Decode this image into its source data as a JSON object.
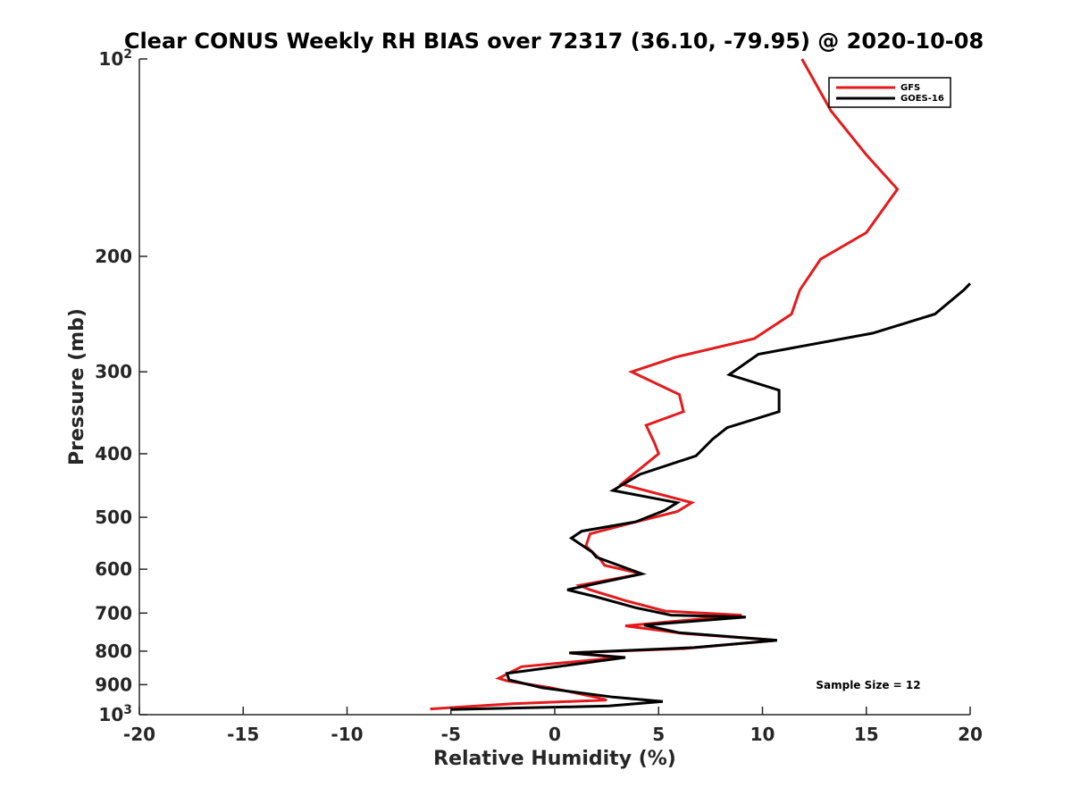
{
  "chart_data": {
    "type": "line",
    "title": "Clear CONUS Weekly RH BIAS over 72317 (36.10, -79.95) @ 2020-10-08",
    "xlabel": "Relative Humidity (%)",
    "ylabel": "Pressure (mb)",
    "xlim": [
      -20,
      20
    ],
    "ylim": [
      1000,
      100
    ],
    "yscale": "log",
    "xticks": [
      -20,
      -15,
      -10,
      -5,
      0,
      5,
      10,
      15,
      20
    ],
    "yticks": [
      {
        "value": 100,
        "label": "10",
        "sup": "2"
      },
      {
        "value": 200,
        "label": "200",
        "sup": ""
      },
      {
        "value": 300,
        "label": "300",
        "sup": ""
      },
      {
        "value": 400,
        "label": "400",
        "sup": ""
      },
      {
        "value": 500,
        "label": "500",
        "sup": ""
      },
      {
        "value": 600,
        "label": "600",
        "sup": ""
      },
      {
        "value": 700,
        "label": "700",
        "sup": ""
      },
      {
        "value": 800,
        "label": "800",
        "sup": ""
      },
      {
        "value": 900,
        "label": "900",
        "sup": ""
      },
      {
        "value": 1000,
        "label": "10",
        "sup": "3"
      }
    ],
    "grid": false,
    "legend_position": "top-right",
    "annotation": "Sample Size = 12",
    "series": [
      {
        "name": "GFS",
        "color": "#e41a1c",
        "points": [
          [
            11.9,
            100
          ],
          [
            13.3,
            120
          ],
          [
            15.0,
            140
          ],
          [
            16.5,
            158
          ],
          [
            15.0,
            184
          ],
          [
            12.8,
            202
          ],
          [
            11.8,
            225
          ],
          [
            11.4,
            245
          ],
          [
            9.6,
            267
          ],
          [
            5.8,
            285
          ],
          [
            3.7,
            300
          ],
          [
            6.0,
            325
          ],
          [
            6.2,
            345
          ],
          [
            4.4,
            362
          ],
          [
            4.8,
            385
          ],
          [
            5.0,
            400
          ],
          [
            3.2,
            445
          ],
          [
            6.6,
            475
          ],
          [
            5.9,
            490
          ],
          [
            3.7,
            510
          ],
          [
            1.7,
            530
          ],
          [
            1.5,
            553
          ],
          [
            2.2,
            580
          ],
          [
            2.4,
            592
          ],
          [
            4.2,
            610
          ],
          [
            1.2,
            635
          ],
          [
            1.7,
            645
          ],
          [
            3.4,
            670
          ],
          [
            5.3,
            695
          ],
          [
            9.0,
            705
          ],
          [
            3.4,
            732
          ],
          [
            6.2,
            752
          ],
          [
            10.7,
            770
          ],
          [
            6.2,
            793
          ],
          [
            0.7,
            805
          ],
          [
            3.1,
            818
          ],
          [
            -1.6,
            845
          ],
          [
            -2.7,
            880
          ],
          [
            -2.3,
            888
          ],
          [
            -0.2,
            910
          ],
          [
            1.6,
            935
          ],
          [
            2.5,
            950
          ],
          [
            -2.0,
            962
          ],
          [
            -6.0,
            980
          ]
        ]
      },
      {
        "name": "GOES-16",
        "color": "#000000",
        "points": [
          [
            20.0,
            220
          ],
          [
            19.7,
            225
          ],
          [
            18.3,
            245
          ],
          [
            15.3,
            262
          ],
          [
            9.8,
            282
          ],
          [
            8.4,
            303
          ],
          [
            10.8,
            320
          ],
          [
            10.8,
            345
          ],
          [
            8.3,
            365
          ],
          [
            7.6,
            380
          ],
          [
            6.8,
            403
          ],
          [
            4.1,
            430
          ],
          [
            2.8,
            455
          ],
          [
            5.9,
            475
          ],
          [
            5.3,
            488
          ],
          [
            3.9,
            508
          ],
          [
            1.3,
            525
          ],
          [
            0.8,
            538
          ],
          [
            1.8,
            565
          ],
          [
            2.0,
            575
          ],
          [
            4.2,
            610
          ],
          [
            0.6,
            645
          ],
          [
            1.9,
            660
          ],
          [
            3.9,
            687
          ],
          [
            5.6,
            705
          ],
          [
            9.2,
            710
          ],
          [
            4.3,
            730
          ],
          [
            6.0,
            750
          ],
          [
            10.7,
            770
          ],
          [
            6.7,
            790
          ],
          [
            0.7,
            805
          ],
          [
            3.4,
            818
          ],
          [
            -2.3,
            865
          ],
          [
            -2.2,
            885
          ],
          [
            -0.6,
            910
          ],
          [
            2.8,
            940
          ],
          [
            5.2,
            955
          ],
          [
            2.6,
            970
          ],
          [
            -5.0,
            982
          ]
        ]
      }
    ]
  }
}
